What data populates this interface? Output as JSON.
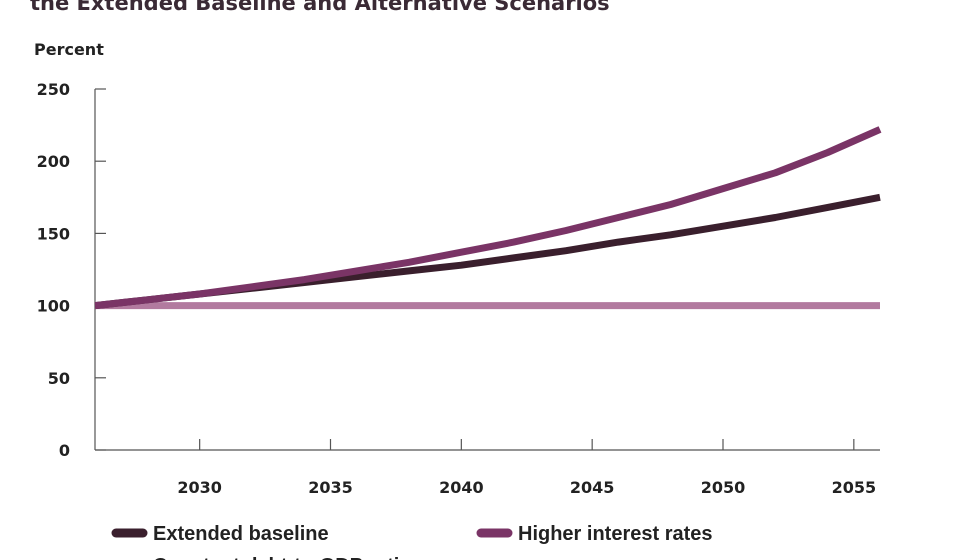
{
  "chart_data": {
    "type": "line",
    "title": "the Extended Baseline and Alternative Scenarios",
    "ylabel": "Percent",
    "xlabel": "",
    "xlim": [
      2026,
      2056
    ],
    "ylim": [
      0,
      250
    ],
    "x_ticks": [
      2030,
      2035,
      2040,
      2045,
      2050,
      2055
    ],
    "y_ticks": [
      0,
      50,
      100,
      150,
      200,
      250
    ],
    "grid": false,
    "legend_placement": "bottom",
    "x": [
      2026,
      2028,
      2030,
      2032,
      2034,
      2036,
      2038,
      2040,
      2042,
      2044,
      2046,
      2048,
      2050,
      2052,
      2054,
      2056
    ],
    "series": [
      {
        "name": "Extended baseline",
        "color": "#3a1f2d",
        "values": [
          100,
          104,
          108,
          112,
          116,
          120,
          124,
          128,
          133,
          138,
          144,
          149,
          155,
          161,
          168,
          175
        ]
      },
      {
        "name": "Higher interest rates",
        "color": "#7a3466",
        "values": [
          100,
          104,
          108,
          113,
          118,
          124,
          130,
          137,
          144,
          152,
          161,
          170,
          181,
          192,
          206,
          222
        ]
      },
      {
        "name": "Constant debt-to-GDP ratio",
        "color": "#b27a9f",
        "values": [
          100,
          100,
          100,
          100,
          100,
          100,
          100,
          100,
          100,
          100,
          100,
          100,
          100,
          100,
          100,
          100
        ]
      }
    ]
  }
}
